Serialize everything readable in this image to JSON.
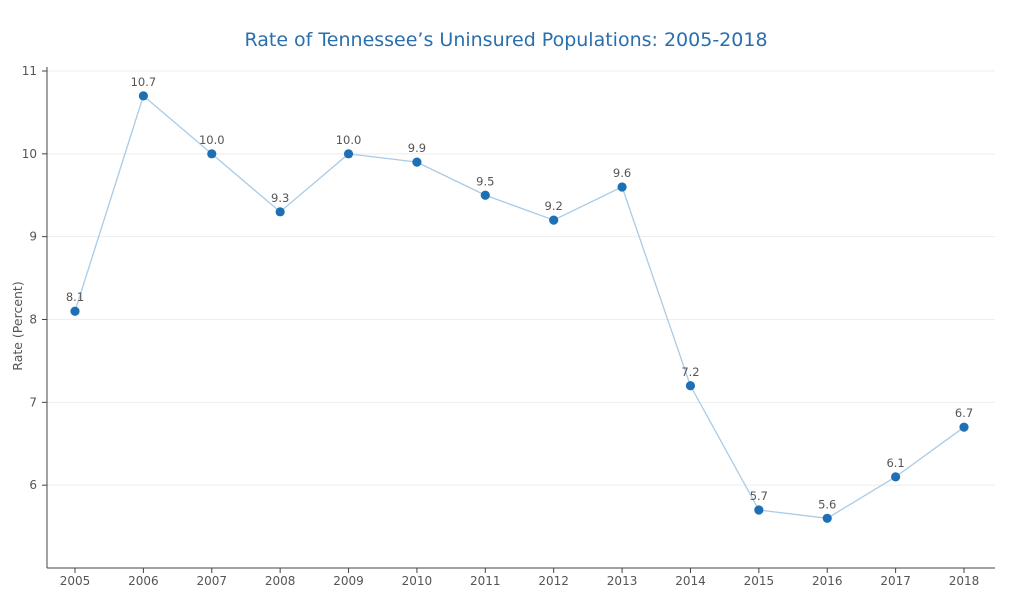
{
  "chart_data": {
    "type": "line",
    "title": "Rate of Tennessee’s Uninsured Populations: 2005-2018",
    "xlabel": "",
    "ylabel": "Rate (Percent)",
    "x": [
      "2005",
      "2006",
      "2007",
      "2008",
      "2009",
      "2010",
      "2011",
      "2012",
      "2013",
      "2014",
      "2015",
      "2016",
      "2017",
      "2018"
    ],
    "values": [
      8.1,
      10.7,
      10.0,
      9.3,
      10.0,
      9.9,
      9.5,
      9.2,
      9.6,
      7.2,
      5.7,
      5.6,
      6.1,
      6.7
    ],
    "data_labels": [
      "8.1",
      "10.7",
      "10.0",
      "9.3",
      "10.0",
      "9.9",
      "9.5",
      "9.2",
      "9.6",
      "7.2",
      "5.7",
      "5.6",
      "6.1",
      "6.7"
    ],
    "ylim": [
      5,
      11
    ],
    "yticks": [
      6,
      7,
      8,
      9,
      10,
      11
    ],
    "grid": true,
    "colors": {
      "line": "#a9cbe6",
      "marker": "#1f6fb4",
      "title": "#2a6fad"
    }
  }
}
